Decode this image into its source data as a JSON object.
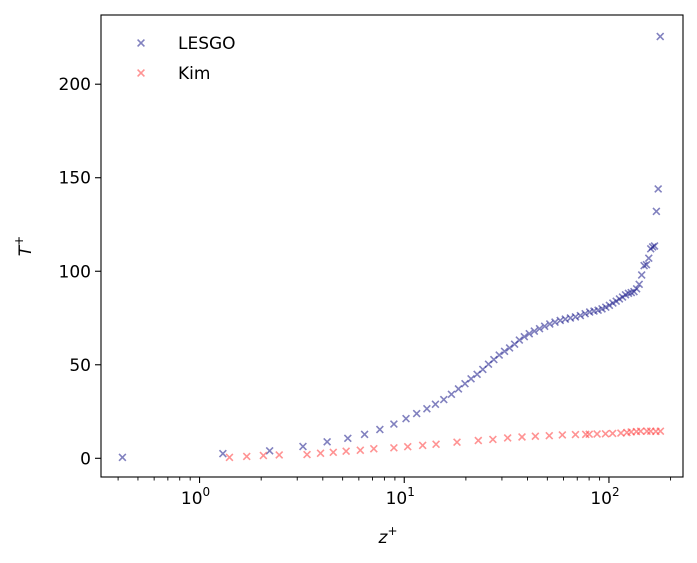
{
  "chart_data": {
    "type": "scatter",
    "title": "",
    "xlabel": "z",
    "xlabel_sup": "+",
    "ylabel": "T",
    "ylabel_sup": "+",
    "xscale": "log",
    "xlim": [
      0.33,
      230
    ],
    "ylim": [
      -10,
      237
    ],
    "xticks": [
      {
        "value": 1,
        "base": "10",
        "exp": "0"
      },
      {
        "value": 10,
        "base": "10",
        "exp": "1"
      },
      {
        "value": 100,
        "base": "10",
        "exp": "2"
      }
    ],
    "yticks": [
      {
        "value": 0,
        "label": "0"
      },
      {
        "value": 50,
        "label": "50"
      },
      {
        "value": 100,
        "label": "100"
      },
      {
        "value": 150,
        "label": "150"
      },
      {
        "value": 200,
        "label": "200"
      }
    ],
    "grid": false,
    "legend_position": "top-left",
    "marker": "x",
    "series": [
      {
        "name": "LESGO",
        "color": "#1c1c8c",
        "x": [
          0.42,
          1.3,
          2.2,
          3.2,
          4.2,
          5.3,
          6.4,
          7.6,
          8.9,
          10.2,
          11.5,
          12.9,
          14.2,
          15.6,
          17.0,
          18.4,
          19.8,
          21.2,
          22.7,
          24.2,
          25.8,
          27.4,
          29.1,
          30.9,
          32.7,
          34.6,
          36.5,
          38.6,
          40.8,
          43.2,
          45.8,
          48.5,
          51.4,
          54.5,
          57.8,
          61.2,
          64.8,
          68.6,
          72.5,
          76.5,
          80.5,
          84.5,
          88.5,
          92.5,
          96.5,
          100.5,
          104.5,
          108.5,
          112.5,
          116.5,
          120.5,
          124.5,
          128.5,
          132.5,
          136.5,
          140.5,
          144.5,
          148.5,
          152.5,
          156.5,
          160.0,
          163.5,
          167.0,
          170.5,
          174.0,
          178.0
        ],
        "y": [
          0.5,
          2.5,
          4.0,
          6.3,
          8.8,
          10.7,
          12.8,
          15.4,
          18.3,
          21.2,
          23.9,
          26.5,
          28.9,
          31.4,
          34.2,
          37.1,
          39.9,
          42.5,
          44.9,
          47.5,
          50.3,
          52.8,
          55.2,
          57.2,
          59.0,
          61.0,
          63.2,
          65.0,
          66.6,
          68.0,
          69.3,
          70.6,
          71.8,
          72.8,
          73.7,
          74.4,
          75.0,
          75.6,
          76.3,
          77.3,
          78.2,
          78.7,
          79.2,
          79.9,
          80.8,
          81.8,
          83.0,
          84.0,
          85.2,
          86.2,
          87.4,
          88.2,
          88.6,
          89.1,
          90.6,
          93.0,
          98.0,
          103.0,
          103.5,
          107.0,
          112.0,
          113.0,
          113.5,
          132.0,
          144.0,
          225.5
        ]
      },
      {
        "name": "Kim",
        "color": "#ff3b3b",
        "x": [
          1.4,
          1.7,
          2.05,
          2.45,
          3.35,
          3.9,
          4.5,
          5.2,
          6.1,
          7.1,
          8.9,
          10.4,
          12.3,
          14.3,
          18.1,
          23.0,
          27.1,
          32.0,
          37.6,
          43.7,
          51.1,
          59.2,
          68.6,
          77.0,
          80.1,
          87.5,
          96.2,
          104.2,
          114.4,
          122.4,
          128.4,
          136.2,
          142.9,
          153.3,
          160.0,
          169.5,
          178.4
        ],
        "y": [
          0.5,
          1.0,
          1.5,
          1.8,
          2.0,
          2.7,
          3.2,
          3.8,
          4.3,
          5.1,
          5.6,
          6.2,
          6.9,
          7.5,
          8.6,
          9.5,
          10.1,
          10.9,
          11.4,
          11.8,
          12.1,
          12.5,
          12.7,
          12.8,
          12.9,
          13.0,
          13.1,
          13.3,
          13.5,
          13.8,
          14.1,
          14.3,
          14.5,
          14.5,
          14.5,
          14.4,
          14.5
        ]
      }
    ]
  }
}
